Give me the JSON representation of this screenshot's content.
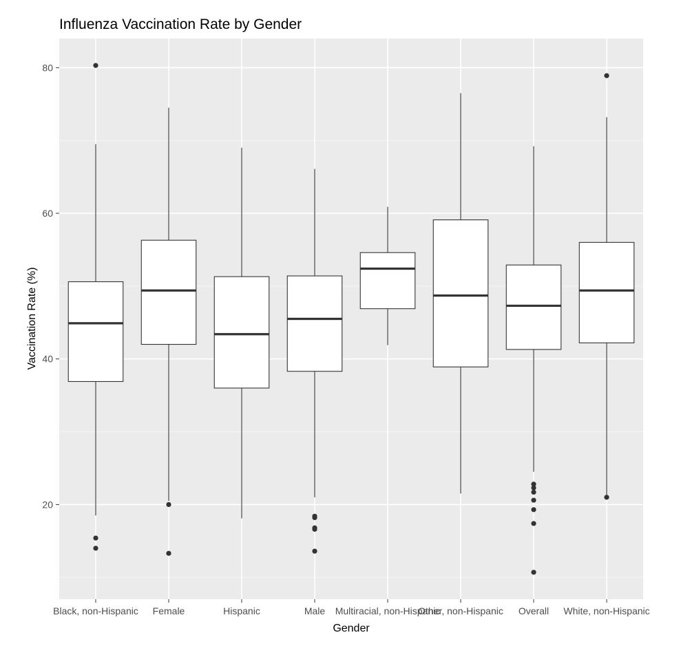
{
  "chart_data": {
    "type": "box",
    "title": "Influenza Vaccination Rate by Gender",
    "xlabel": "Gender",
    "ylabel": "Vaccination Rate (%)",
    "ylim": [
      7,
      84
    ],
    "yticks": [
      20,
      40,
      60,
      80
    ],
    "grid": true,
    "legend": "none",
    "categories": [
      "Black, non-Hispanic",
      "Female",
      "Hispanic",
      "Male",
      "Multiracial, non-Hispanic",
      "Other, non-Hispanic",
      "Overall",
      "White, non-Hispanic"
    ],
    "boxes": [
      {
        "category": "Black, non-Hispanic",
        "lower_whisker": 18.5,
        "q1": 36.9,
        "median": 44.9,
        "q3": 50.6,
        "upper_whisker": 69.5,
        "outliers": [
          80.3,
          15.4,
          14.0
        ]
      },
      {
        "category": "Female",
        "lower_whisker": 20.5,
        "q1": 42.0,
        "median": 49.4,
        "q3": 56.3,
        "upper_whisker": 74.5,
        "outliers": [
          20.0,
          13.3
        ]
      },
      {
        "category": "Hispanic",
        "lower_whisker": 18.1,
        "q1": 36.0,
        "median": 43.4,
        "q3": 51.3,
        "upper_whisker": 69.0,
        "outliers": []
      },
      {
        "category": "Male",
        "lower_whisker": 21.0,
        "q1": 38.3,
        "median": 45.5,
        "q3": 51.4,
        "upper_whisker": 66.1,
        "outliers": [
          18.4,
          18.2,
          16.8,
          16.6,
          13.6
        ]
      },
      {
        "category": "Multiracial, non-Hispanic",
        "lower_whisker": 41.9,
        "q1": 46.9,
        "median": 52.4,
        "q3": 54.6,
        "upper_whisker": 60.9,
        "outliers": []
      },
      {
        "category": "Other, non-Hispanic",
        "lower_whisker": 21.5,
        "q1": 38.9,
        "median": 48.7,
        "q3": 59.1,
        "upper_whisker": 76.5,
        "outliers": []
      },
      {
        "category": "Overall",
        "lower_whisker": 24.5,
        "q1": 41.3,
        "median": 47.3,
        "q3": 52.9,
        "upper_whisker": 69.2,
        "outliers": [
          22.8,
          22.3,
          21.7,
          20.6,
          19.3,
          17.4,
          10.7
        ]
      },
      {
        "category": "White, non-Hispanic",
        "lower_whisker": 21.2,
        "q1": 42.2,
        "median": 49.4,
        "q3": 56.0,
        "upper_whisker": 73.2,
        "outliers": [
          78.9,
          21.0
        ]
      }
    ],
    "colors": {
      "panel": "#ebebeb",
      "grid_major": "#ffffff",
      "grid_minor": "#f5f5f5",
      "box_fill": "#ffffff",
      "box_line": "#333333",
      "tick_text": "#4d4d4d"
    }
  }
}
